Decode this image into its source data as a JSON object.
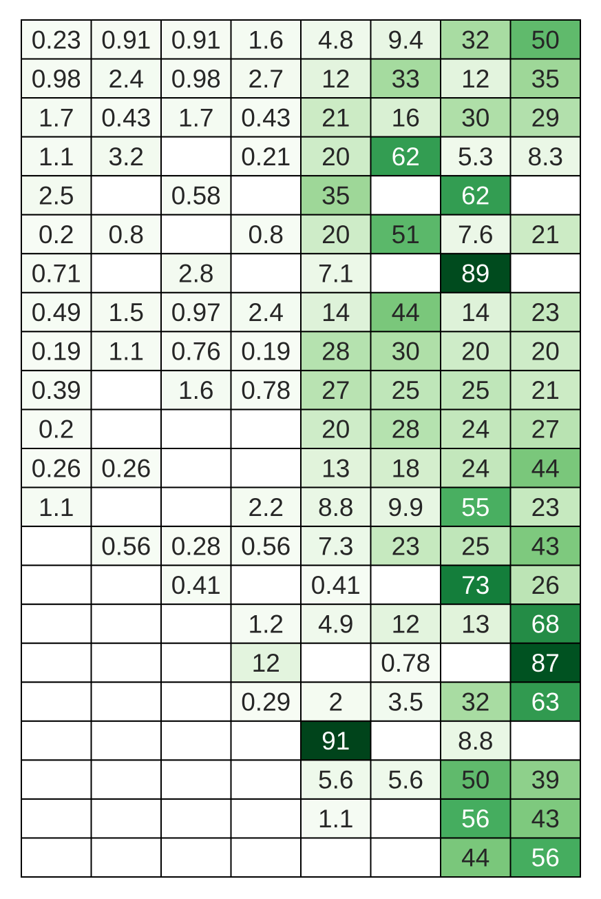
{
  "chart_data": {
    "type": "heatmap",
    "title": "",
    "xlabel": "",
    "ylabel": "",
    "colormap": "Greens",
    "vmin": 0,
    "vmax": 91,
    "empty_cell_color": "#ffffff",
    "grid_line_color": "#000000",
    "text_dark_color": "#262626",
    "text_light_color": "#ffffff",
    "n_rows": 22,
    "n_cols": 8,
    "values": [
      [
        "0.23",
        "0.91",
        "0.91",
        "1.6",
        "4.8",
        "9.4",
        "32",
        "50"
      ],
      [
        "0.98",
        "2.4",
        "0.98",
        "2.7",
        "12",
        "33",
        "12",
        "35"
      ],
      [
        "1.7",
        "0.43",
        "1.7",
        "0.43",
        "21",
        "16",
        "30",
        "29"
      ],
      [
        "1.1",
        "3.2",
        "",
        "0.21",
        "20",
        "62",
        "5.3",
        "8.3"
      ],
      [
        "2.5",
        "",
        "0.58",
        "",
        "35",
        "",
        "62",
        ""
      ],
      [
        "0.2",
        "0.8",
        "",
        "0.8",
        "20",
        "51",
        "7.6",
        "21"
      ],
      [
        "0.71",
        "",
        "2.8",
        "",
        "7.1",
        "",
        "89",
        ""
      ],
      [
        "0.49",
        "1.5",
        "0.97",
        "2.4",
        "14",
        "44",
        "14",
        "23"
      ],
      [
        "0.19",
        "1.1",
        "0.76",
        "0.19",
        "28",
        "30",
        "20",
        "20"
      ],
      [
        "0.39",
        "",
        "1.6",
        "0.78",
        "27",
        "25",
        "25",
        "21"
      ],
      [
        "0.2",
        "",
        "",
        "",
        "20",
        "28",
        "24",
        "27"
      ],
      [
        "0.26",
        "0.26",
        "",
        "",
        "13",
        "18",
        "24",
        "44"
      ],
      [
        "1.1",
        "",
        "",
        "2.2",
        "8.8",
        "9.9",
        "55",
        "23"
      ],
      [
        "",
        "0.56",
        "0.28",
        "0.56",
        "7.3",
        "23",
        "25",
        "43"
      ],
      [
        "",
        "",
        "0.41",
        "",
        "0.41",
        "",
        "73",
        "26"
      ],
      [
        "",
        "",
        "",
        "1.2",
        "4.9",
        "12",
        "13",
        "68"
      ],
      [
        "",
        "",
        "",
        "12",
        "",
        "0.78",
        "",
        "87"
      ],
      [
        "",
        "",
        "",
        "0.29",
        "2",
        "3.5",
        "32",
        "63"
      ],
      [
        "",
        "",
        "",
        "",
        "91",
        "",
        "8.8",
        ""
      ],
      [
        "",
        "",
        "",
        "",
        "5.6",
        "5.6",
        "50",
        "39"
      ],
      [
        "",
        "",
        "",
        "",
        "1.1",
        "",
        "56",
        "43"
      ],
      [
        "",
        "",
        "",
        "",
        "",
        "",
        "44",
        "56"
      ]
    ]
  }
}
